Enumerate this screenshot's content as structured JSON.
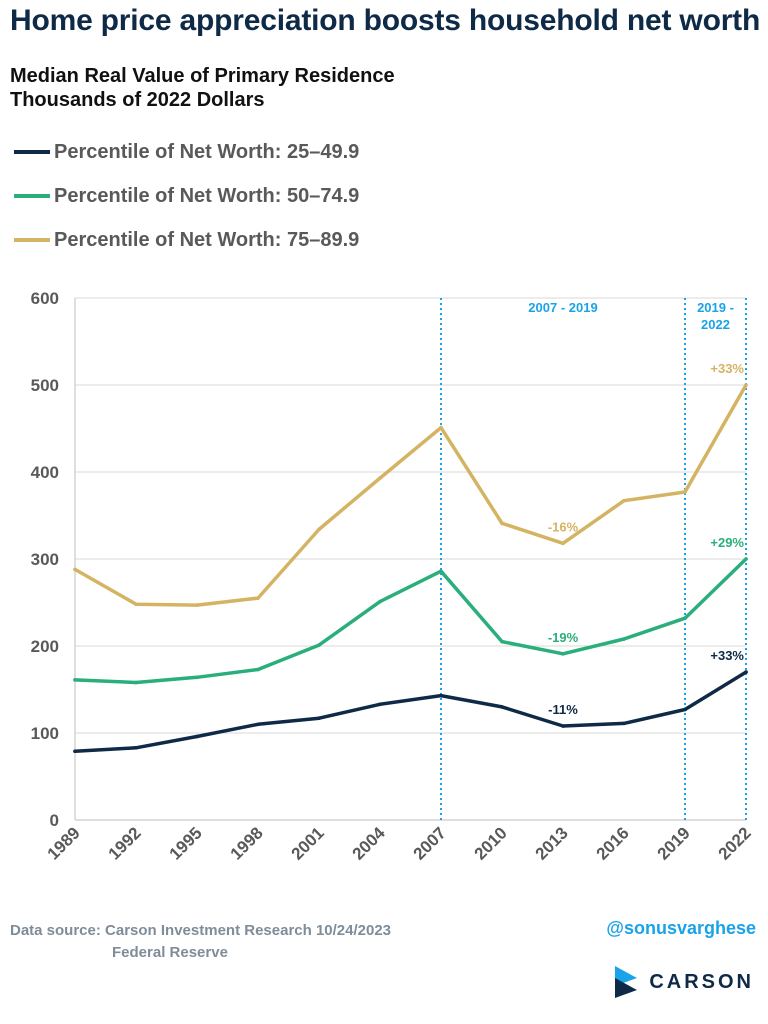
{
  "header": {
    "title": "Home price appreciation boosts household net worth"
  },
  "chart_data": {
    "type": "line",
    "title": "Median Real Value of Primary Residence",
    "subtitle": "Thousands of 2022 Dollars",
    "xlabel": "",
    "ylabel": "",
    "x": [
      "1989",
      "1992",
      "1995",
      "1998",
      "2001",
      "2004",
      "2007",
      "2010",
      "2013",
      "2016",
      "2019",
      "2022"
    ],
    "ylim": [
      0,
      600
    ],
    "yticks": [
      0,
      100,
      200,
      300,
      400,
      500,
      600
    ],
    "grid": true,
    "legend_position": "top-left",
    "series": [
      {
        "name": "Percentile of Net Worth: 25–49.9",
        "color": "#0e2a47",
        "values": [
          79,
          83,
          96,
          110,
          117,
          133,
          143,
          130,
          108,
          111,
          127,
          170
        ]
      },
      {
        "name": "Percentile of Net Worth: 50–74.9",
        "color": "#2aae7b",
        "values": [
          161,
          158,
          164,
          173,
          201,
          251,
          286,
          205,
          191,
          208,
          232,
          300
        ]
      },
      {
        "name": "Percentile of Net Worth: 75–89.9",
        "color": "#d4b463",
        "values": [
          288,
          248,
          247,
          255,
          334,
          393,
          451,
          341,
          318,
          367,
          377,
          500
        ]
      }
    ],
    "period_markers": [
      {
        "x": "2007",
        "label": "2007 - 2019",
        "color": "#1aa3e8"
      },
      {
        "x": "2019",
        "label": "2019 -\n2022",
        "color": "#1aa3e8"
      },
      {
        "x": "2022",
        "label": "",
        "color": "#1aa3e8"
      }
    ],
    "annotations": [
      {
        "text": "+33%",
        "series": 2,
        "x": "2022",
        "color": "#d4b463"
      },
      {
        "text": "-16%",
        "series": 2,
        "x": "2013",
        "color": "#d4b463"
      },
      {
        "text": "+29%",
        "series": 1,
        "x": "2022",
        "color": "#2aae7b"
      },
      {
        "text": "-19%",
        "series": 1,
        "x": "2013",
        "color": "#2aae7b"
      },
      {
        "text": "+33%",
        "series": 0,
        "x": "2022",
        "color": "#0e2a47"
      },
      {
        "text": "-11%",
        "series": 0,
        "x": "2013",
        "color": "#0e2a47"
      }
    ]
  },
  "footer": {
    "source_line1": "Data source: Carson Investment Research    10/24/2023",
    "source_line2": "Federal Reserve",
    "handle": "@sonusvarghese",
    "brand": "CARSON"
  },
  "colors": {
    "navy": "#0e2a47",
    "green": "#2aae7b",
    "gold": "#d4b463",
    "accent_blue": "#1aa3e8"
  },
  "icons": {
    "brand_logo": "carson-logo-icon"
  }
}
